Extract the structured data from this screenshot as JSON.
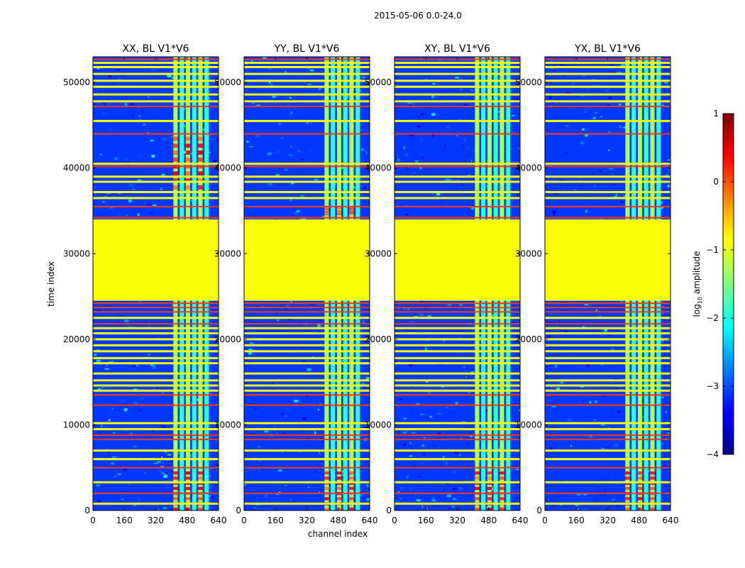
{
  "chart_data": {
    "type": "heatmap",
    "suptitle": "2015-05-06 0.0-24.0",
    "xlabel": "channel index",
    "ylabel": "time index",
    "xlim": [
      0,
      640
    ],
    "ylim": [
      0,
      53000
    ],
    "xticks": [
      0,
      160,
      320,
      480,
      640
    ],
    "yticks": [
      0,
      10000,
      20000,
      30000,
      40000,
      50000
    ],
    "panels": [
      {
        "title": "XX, BL V1*V6",
        "rfi_band": [
          410,
          600
        ],
        "hot_rows": [
          [
            0,
            4800
          ],
          [
            37500,
            44000
          ]
        ]
      },
      {
        "title": "YY, BL V1*V6",
        "rfi_band": [
          410,
          600
        ],
        "hot_rows": [
          [
            0,
            4800
          ],
          [
            34500,
            35500
          ]
        ]
      },
      {
        "title": "XY, BL V1*V6",
        "rfi_band": [
          410,
          600
        ],
        "hot_rows": [
          [
            0,
            4800
          ]
        ]
      },
      {
        "title": "YX, BL V1*V6",
        "rfi_band": [
          410,
          600
        ],
        "hot_rows": [
          [
            0,
            4800
          ]
        ]
      }
    ],
    "flagged_block": [
      24500,
      34000
    ],
    "flag_value": -0.9,
    "colorbar": {
      "label_prefix": "log",
      "label_sub": "10",
      "label_suffix": " amplitude",
      "vmin": -4,
      "vmax": 1,
      "ticks": [
        "1",
        "0",
        "−1",
        "−2",
        "−3",
        "−4"
      ],
      "tick_values": [
        1,
        0,
        -1,
        -2,
        -3,
        -4
      ],
      "colormap": "jet"
    }
  }
}
